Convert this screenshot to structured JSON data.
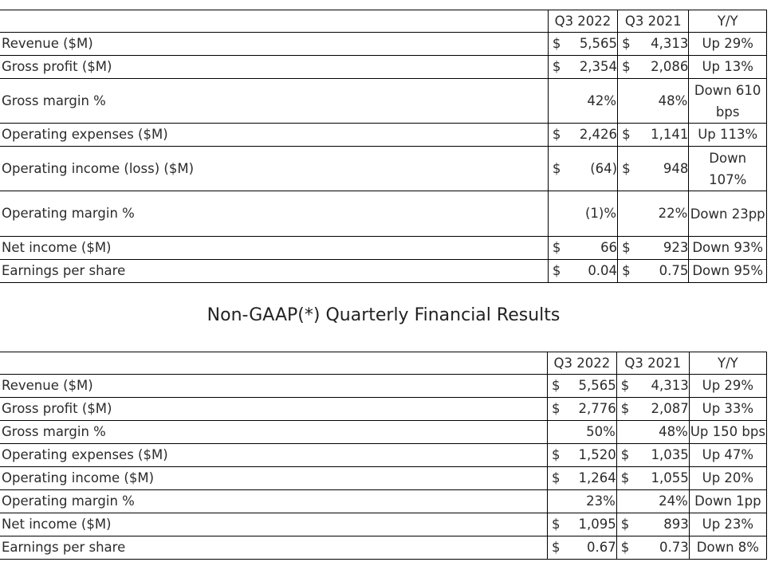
{
  "gaap": {
    "headers": [
      "Q3 2022",
      "Q3 2021",
      "Y/Y"
    ],
    "rows": [
      {
        "label": "Revenue ($M)",
        "c1": "$",
        "v1": "5,565",
        "c2": "$",
        "v2": "4,313",
        "yy": "Up 29%"
      },
      {
        "label": "Gross profit ($M)",
        "c1": "$",
        "v1": "2,354",
        "c2": "$",
        "v2": "2,086",
        "yy": "Up 13%"
      },
      {
        "label": "Gross margin %",
        "c1": "",
        "v1": "42%",
        "c2": "",
        "v2": "48%",
        "yy": "Down 610 bps"
      },
      {
        "label": "Operating expenses ($M)",
        "c1": "$",
        "v1": "2,426",
        "c2": "$",
        "v2": "1,141",
        "yy": "Up 113%"
      },
      {
        "label": "Operating income (loss) ($M)",
        "c1": "$",
        "v1": "(64)",
        "c2": "$",
        "v2": "948",
        "yy": "Down 107%"
      },
      {
        "label": "Operating margin %",
        "c1": "",
        "v1": "(1)%",
        "c2": "",
        "v2": "22%",
        "yy": "Down 23pp"
      },
      {
        "label": "Net income ($M)",
        "c1": "$",
        "v1": "66",
        "c2": "$",
        "v2": "923",
        "yy": "Down 93%"
      },
      {
        "label": "Earnings per share",
        "c1": "$",
        "v1": "0.04",
        "c2": "$",
        "v2": "0.75",
        "yy": "Down 95%"
      }
    ]
  },
  "nongaap_title": "Non-GAAP(*) Quarterly Financial Results",
  "nongaap": {
    "headers": [
      "Q3 2022",
      "Q3 2021",
      "Y/Y"
    ],
    "rows": [
      {
        "label": "Revenue ($M)",
        "c1": "$",
        "v1": "5,565",
        "c2": "$",
        "v2": "4,313",
        "yy": "Up 29%"
      },
      {
        "label": "Gross profit ($M)",
        "c1": "$",
        "v1": "2,776",
        "c2": "$",
        "v2": "2,087",
        "yy": "Up 33%"
      },
      {
        "label": "Gross margin %",
        "c1": "",
        "v1": "50%",
        "c2": "",
        "v2": "48%",
        "yy": "Up 150 bps"
      },
      {
        "label": "Operating expenses ($M)",
        "c1": "$",
        "v1": "1,520",
        "c2": "$",
        "v2": "1,035",
        "yy": "Up 47%"
      },
      {
        "label": "Operating income ($M)",
        "c1": "$",
        "v1": "1,264",
        "c2": "$",
        "v2": "1,055",
        "yy": "Up 20%"
      },
      {
        "label": "Operating margin %",
        "c1": "",
        "v1": "23%",
        "c2": "",
        "v2": "24%",
        "yy": "Down 1pp"
      },
      {
        "label": "Net income ($M)",
        "c1": "$",
        "v1": "1,095",
        "c2": "$",
        "v2": "893",
        "yy": "Up 23%"
      },
      {
        "label": "Earnings per share",
        "c1": "$",
        "v1": "0.67",
        "c2": "$",
        "v2": "0.73",
        "yy": "Down 8%"
      }
    ]
  }
}
